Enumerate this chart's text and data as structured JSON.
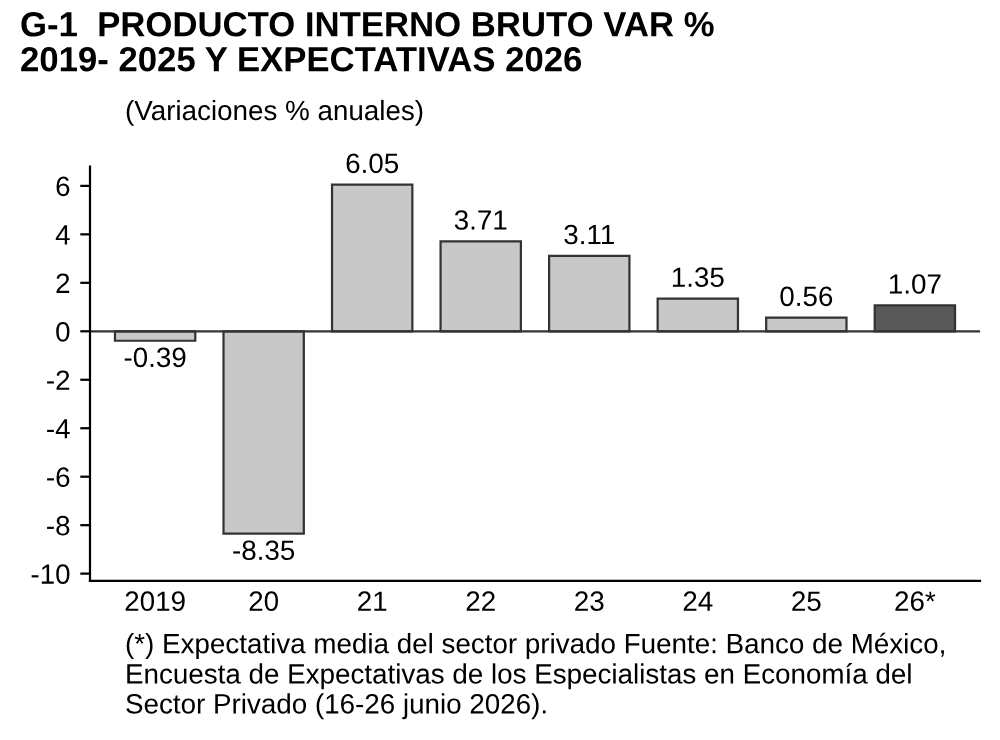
{
  "chart_data": {
    "type": "bar",
    "title": "G-1  PRODUCTO INTERNO BRUTO VAR %\n2019- 2025 Y EXPECTATIVAS 2026",
    "subtitle": "(Variaciones % anuales)",
    "categories": [
      "2019",
      "20",
      "21",
      "22",
      "23",
      "24",
      "25",
      "26*"
    ],
    "values": [
      -0.39,
      -8.35,
      6.05,
      3.71,
      3.11,
      1.35,
      0.56,
      1.07
    ],
    "colors": [
      "#c8c8c8",
      "#c8c8c8",
      "#c8c8c8",
      "#c8c8c8",
      "#c8c8c8",
      "#c8c8c8",
      "#c8c8c8",
      "#595959"
    ],
    "ylim": [
      -10.3,
      6.8
    ],
    "yticks": [
      {
        "value": -10,
        "label": "-10"
      },
      {
        "value": -8,
        "label": "-8"
      },
      {
        "value": -6,
        "label": "-6"
      },
      {
        "value": -4,
        "label": "-4"
      },
      {
        "value": -2,
        "label": "-2"
      },
      0,
      2,
      4,
      6
    ],
    "data_labels": true,
    "ref_lines": [
      {
        "axis": "y",
        "value": 0,
        "color": "#333333"
      }
    ],
    "annotations": [
      "(*) Expectativa media del sector privado Fuente: Banco de México, Encuesta de Expectativas de los Especialistas en Economía del Sector Privado (16-26 junio 2026)."
    ]
  }
}
